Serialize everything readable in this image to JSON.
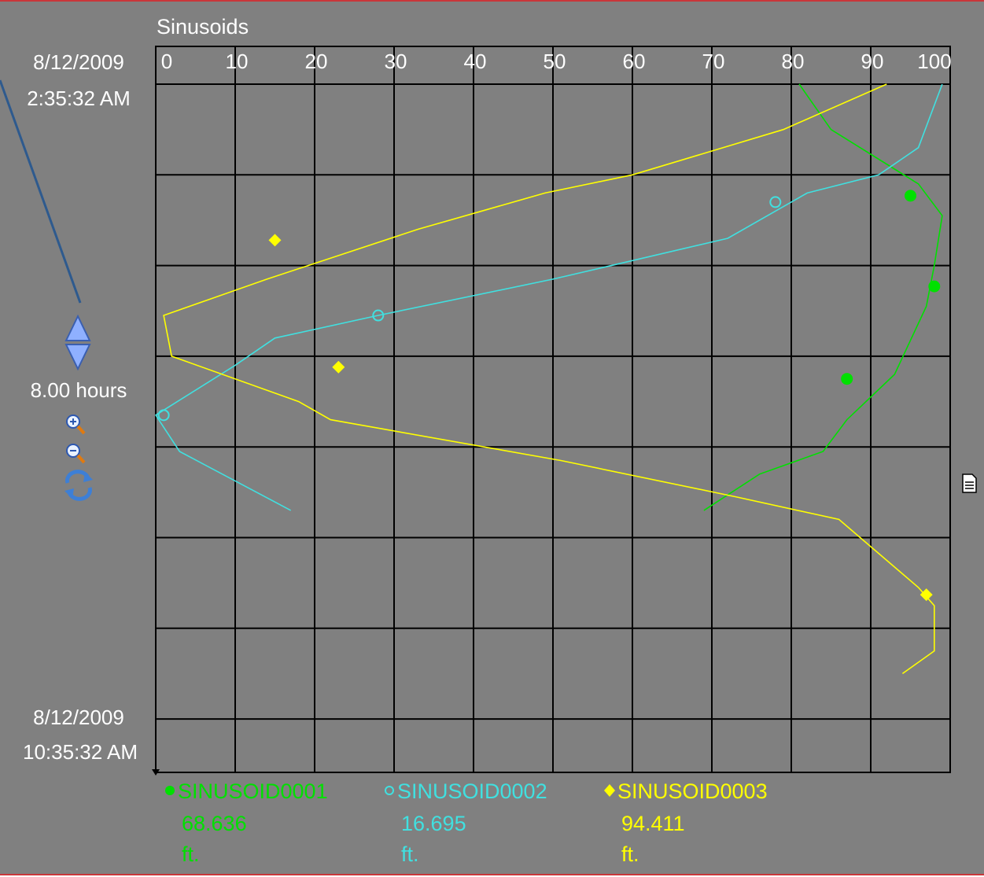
{
  "chart_data": {
    "type": "line",
    "orientation": "vertical-time",
    "title": "Sinusoids",
    "x_ticks": [
      "0",
      "10",
      "20",
      "30",
      "40",
      "50",
      "60",
      "70",
      "80",
      "90",
      "100"
    ],
    "xlim": [
      0,
      100
    ],
    "time_start": {
      "date": "8/12/2009",
      "time": "2:35:32 AM"
    },
    "time_end": {
      "date": "8/12/2009",
      "time": "10:35:32 AM"
    },
    "time_range_hours": 8,
    "grid": true,
    "series": [
      {
        "name": "SINUSOID0001",
        "value": "68.636",
        "unit": "ft.",
        "color": "#00e000",
        "marker": "filled-circle",
        "points": [
          [
            81,
            0
          ],
          [
            85,
            0.5
          ],
          [
            96,
            1.1
          ],
          [
            99,
            1.45
          ],
          [
            98,
            2
          ],
          [
            97,
            2.45
          ],
          [
            93,
            3.2
          ],
          [
            87,
            3.7
          ],
          [
            84,
            4.05
          ],
          [
            76,
            4.3
          ],
          [
            69,
            4.7
          ]
        ],
        "markers": [
          [
            95,
            1.23
          ],
          [
            98,
            2.23
          ],
          [
            87,
            3.25
          ]
        ]
      },
      {
        "name": "SINUSOID0002",
        "value": "16.695",
        "unit": "ft.",
        "color": "#40e0e0",
        "marker": "open-circle",
        "points": [
          [
            99,
            0
          ],
          [
            96,
            0.7
          ],
          [
            91,
            1
          ],
          [
            82,
            1.2
          ],
          [
            72,
            1.7
          ],
          [
            50,
            2.15
          ],
          [
            28,
            2.55
          ],
          [
            15,
            2.8
          ],
          [
            10,
            3.1
          ],
          [
            0,
            3.65
          ],
          [
            3,
            4.05
          ],
          [
            17,
            4.7
          ]
        ],
        "markers": [
          [
            78,
            1.3
          ],
          [
            28,
            2.55
          ],
          [
            1,
            3.65
          ]
        ]
      },
      {
        "name": "SINUSOID0003",
        "value": "94.411",
        "unit": "ft.",
        "color": "#ffff00",
        "marker": "filled-diamond",
        "points": [
          [
            92,
            0
          ],
          [
            79,
            0.5
          ],
          [
            60,
            1
          ],
          [
            49,
            1.2
          ],
          [
            33,
            1.6
          ],
          [
            14,
            2.15
          ],
          [
            1,
            2.55
          ],
          [
            2,
            3
          ],
          [
            18,
            3.5
          ],
          [
            22,
            3.7
          ],
          [
            51,
            4.15
          ],
          [
            73,
            4.55
          ],
          [
            86,
            4.8
          ],
          [
            96,
            5.55
          ],
          [
            98,
            5.75
          ],
          [
            98,
            6.25
          ],
          [
            94,
            6.5
          ]
        ],
        "markers": [
          [
            15,
            1.72
          ],
          [
            23,
            3.12
          ],
          [
            97,
            5.63
          ]
        ]
      }
    ]
  },
  "nav": {
    "duration": "8.00 hours",
    "icons": [
      "scroll-up-icon",
      "scroll-down-icon",
      "zoom-in-icon",
      "zoom-out-icon",
      "refresh-icon",
      "document-icon"
    ]
  }
}
